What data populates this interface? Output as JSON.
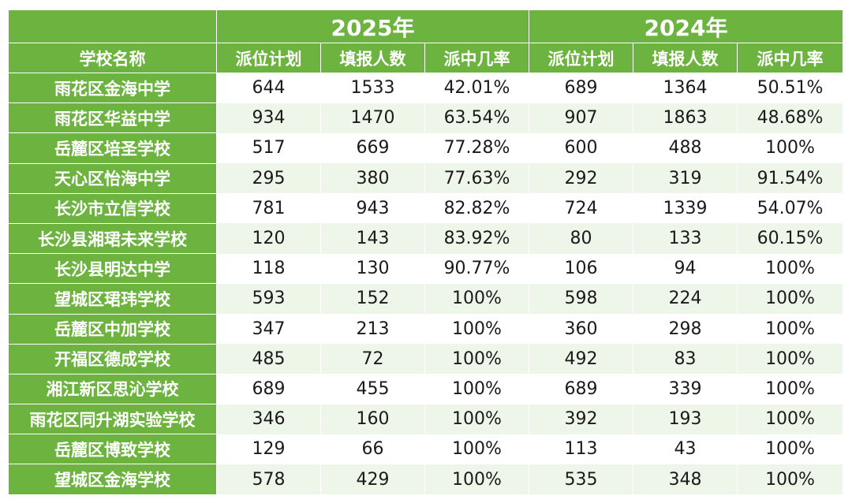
{
  "header": {
    "year_a": "2025年",
    "year_b": "2024年",
    "col_school": "学校名称",
    "col_plan": "派位计划",
    "col_apply": "填报人数",
    "col_rate": "派中几率"
  },
  "rows": [
    {
      "school": "雨花区金海中学",
      "plan25": "644",
      "apply25": "1533",
      "rate25": "42.01%",
      "plan24": "689",
      "apply24": "1364",
      "rate24": "50.51%"
    },
    {
      "school": "雨花区华益中学",
      "plan25": "934",
      "apply25": "1470",
      "rate25": "63.54%",
      "plan24": "907",
      "apply24": "1863",
      "rate24": "48.68%"
    },
    {
      "school": "岳麓区培圣学校",
      "plan25": "517",
      "apply25": "669",
      "rate25": "77.28%",
      "plan24": "600",
      "apply24": "488",
      "rate24": "100%"
    },
    {
      "school": "天心区怡海中学",
      "plan25": "295",
      "apply25": "380",
      "rate25": "77.63%",
      "plan24": "292",
      "apply24": "319",
      "rate24": "91.54%"
    },
    {
      "school": "长沙市立信学校",
      "plan25": "781",
      "apply25": "943",
      "rate25": "82.82%",
      "plan24": "724",
      "apply24": "1339",
      "rate24": "54.07%"
    },
    {
      "school": "长沙县湘珺未来学校",
      "plan25": "120",
      "apply25": "143",
      "rate25": "83.92%",
      "plan24": "80",
      "apply24": "133",
      "rate24": "60.15%"
    },
    {
      "school": "长沙县明达中学",
      "plan25": "118",
      "apply25": "130",
      "rate25": "90.77%",
      "plan24": "106",
      "apply24": "94",
      "rate24": "100%"
    },
    {
      "school": "望城区珺玮学校",
      "plan25": "593",
      "apply25": "152",
      "rate25": "100%",
      "plan24": "598",
      "apply24": "224",
      "rate24": "100%"
    },
    {
      "school": "岳麓区中加学校",
      "plan25": "347",
      "apply25": "213",
      "rate25": "100%",
      "plan24": "360",
      "apply24": "298",
      "rate24": "100%"
    },
    {
      "school": "开福区德成学校",
      "plan25": "485",
      "apply25": "72",
      "rate25": "100%",
      "plan24": "492",
      "apply24": "83",
      "rate24": "100%"
    },
    {
      "school": "湘江新区思沁学校",
      "plan25": "689",
      "apply25": "455",
      "rate25": "100%",
      "plan24": "689",
      "apply24": "339",
      "rate24": "100%"
    },
    {
      "school": "雨花区同升湖实验学校",
      "plan25": "346",
      "apply25": "160",
      "rate25": "100%",
      "plan24": "392",
      "apply24": "193",
      "rate24": "100%"
    },
    {
      "school": "岳麓区博致学校",
      "plan25": "129",
      "apply25": "66",
      "rate25": "100%",
      "plan24": "113",
      "apply24": "43",
      "rate24": "100%"
    },
    {
      "school": "望城区金海学校",
      "plan25": "578",
      "apply25": "429",
      "rate25": "100%",
      "plan24": "535",
      "apply24": "348",
      "rate24": "100%"
    }
  ]
}
